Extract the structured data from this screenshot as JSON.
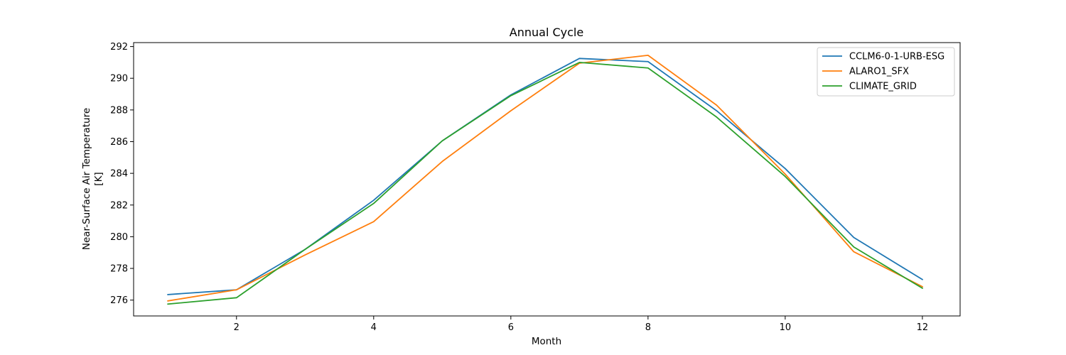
{
  "chart_data": {
    "type": "line",
    "title": "Annual Cycle",
    "xlabel": "Month",
    "ylabel_line1": "Near-Surface Air Temperature",
    "ylabel_line2": "[K]",
    "xlim": [
      0.5,
      12.55
    ],
    "ylim": [
      275.0,
      292.25
    ],
    "xticks": [
      2,
      4,
      6,
      8,
      10,
      12
    ],
    "yticks": [
      276,
      278,
      280,
      282,
      284,
      286,
      288,
      290,
      292
    ],
    "grid": false,
    "legend_position": "top-right",
    "x": [
      1,
      2,
      3,
      4,
      5,
      6,
      7,
      8,
      9,
      10,
      11,
      12
    ],
    "series": [
      {
        "name": "CCLM6-0-1-URB-ESG",
        "color": "#1f77b4",
        "values": [
          276.35,
          276.65,
          279.2,
          282.3,
          286.05,
          288.95,
          291.25,
          291.05,
          287.95,
          284.3,
          279.95,
          277.3
        ]
      },
      {
        "name": "ALARO1_SFX",
        "color": "#ff7f0e",
        "values": [
          275.95,
          276.65,
          278.85,
          280.95,
          284.75,
          287.95,
          290.95,
          291.45,
          288.3,
          283.95,
          279.05,
          276.85
        ]
      },
      {
        "name": "CLIMATE_GRID",
        "color": "#2ca02c",
        "values": [
          275.75,
          276.15,
          279.2,
          282.1,
          286.05,
          288.9,
          291.0,
          290.65,
          287.55,
          283.8,
          279.35,
          276.75
        ]
      }
    ]
  }
}
